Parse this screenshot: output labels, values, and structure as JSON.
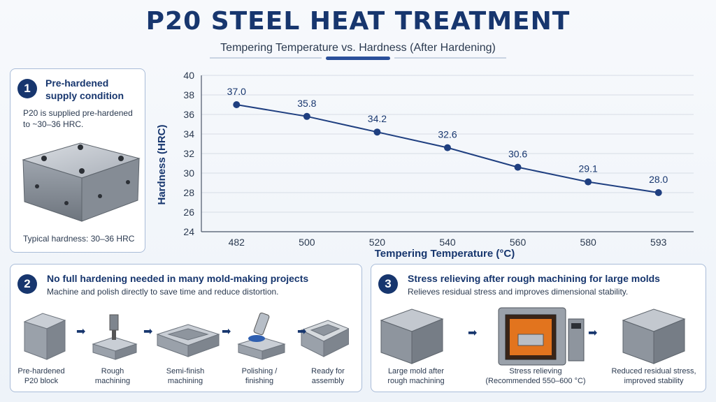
{
  "header": {
    "title": "P20 STEEL HEAT TREATMENT",
    "subtitle": "Tempering Temperature vs. Hardness (After Hardening)"
  },
  "panel1": {
    "number": "1",
    "heading_line1": "Pre-hardened",
    "heading_line2": "supply condition",
    "text_line1": "P20 is supplied pre-hardened",
    "text_line2": "to ~30–36 HRC.",
    "caption": "Typical hardness: 30–36 HRC"
  },
  "panel2": {
    "number": "2",
    "heading": "No full hardening needed in many mold-making projects",
    "text": "Machine and polish directly to save time and reduce distortion.",
    "steps": [
      {
        "line1": "Pre-hardened",
        "line2": "P20 block"
      },
      {
        "line1": "Rough",
        "line2": "machining"
      },
      {
        "line1": "Semi-finish",
        "line2": "machining"
      },
      {
        "line1": "Polishing /",
        "line2": "finishing"
      },
      {
        "line1": "Ready for",
        "line2": "assembly"
      }
    ]
  },
  "panel3": {
    "number": "3",
    "heading": "Stress relieving after rough machining for large molds",
    "text": "Relieves residual stress and improves dimensional stability.",
    "steps": [
      {
        "line1": "Large mold after",
        "line2": "rough machining"
      },
      {
        "line1": "Stress relieving",
        "line2": "(Recommended  550–600 °C)"
      },
      {
        "line1": "Reduced residual stress,",
        "line2": "improved stability"
      }
    ]
  },
  "colors": {
    "primary": "#17366e",
    "line": "#1f3f80",
    "grid": "#d7dde6"
  },
  "chart_data": {
    "type": "line",
    "title": "",
    "xlabel": "Tempering Temperature (°C)",
    "ylabel": "Hardness (HRC)",
    "categories": [
      "482",
      "500",
      "520",
      "540",
      "560",
      "580",
      "593"
    ],
    "values": [
      37.0,
      35.8,
      34.2,
      32.6,
      30.6,
      29.1,
      28.0
    ],
    "value_labels": [
      "37.0",
      "35.8",
      "34.2",
      "32.6",
      "30.6",
      "29.1",
      "28.0"
    ],
    "ylim": [
      24,
      40
    ],
    "yticks": [
      "24",
      "26",
      "28",
      "30",
      "32",
      "34",
      "36",
      "38",
      "40"
    ],
    "grid": "horizontal"
  }
}
